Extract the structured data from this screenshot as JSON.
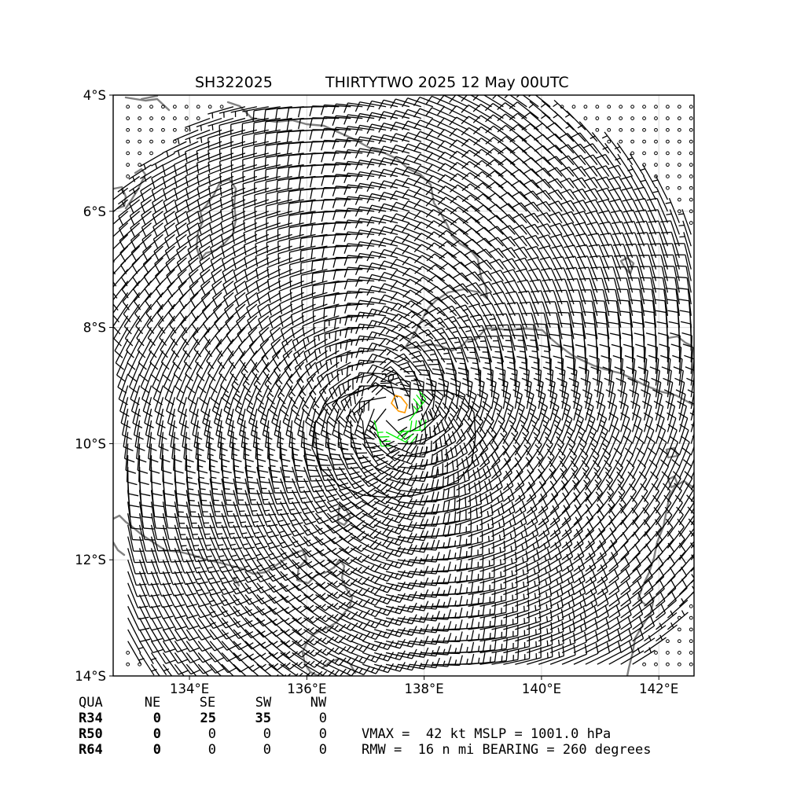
{
  "title": {
    "storm_id": "SH322025",
    "storm_info": "THIRTYTWO 2025 12 May 00UTC"
  },
  "map": {
    "lat_range": [
      -14,
      -4
    ],
    "lon_range": [
      132.7,
      142.6
    ],
    "lat_ticks": [
      {
        "value": -4,
        "label": "4°S"
      },
      {
        "value": -6,
        "label": "6°S"
      },
      {
        "value": -8,
        "label": "8°S"
      },
      {
        "value": -10,
        "label": "10°S"
      },
      {
        "value": -12,
        "label": "12°S"
      },
      {
        "value": -14,
        "label": "14°S"
      }
    ],
    "lon_ticks": [
      {
        "value": 134,
        "label": "134°E"
      },
      {
        "value": 136,
        "label": "136°E"
      },
      {
        "value": 138,
        "label": "138°E"
      },
      {
        "value": 140,
        "label": "140°E"
      },
      {
        "value": 142,
        "label": "142°E"
      }
    ],
    "grid": true,
    "storm_center": {
      "lon": 137.45,
      "lat": -9.45
    },
    "rmw_nmi": 16,
    "vmax_kt": 42,
    "contours": [
      {
        "level": 20,
        "label": "20",
        "color": "#000000"
      },
      {
        "level": 34,
        "label": "",
        "color": "#ff9900"
      }
    ],
    "colors": {
      "coast": "#808080",
      "barb": "#000000",
      "barb_gale": "#00ee00",
      "contour_20": "#000000",
      "contour_34": "#ff9900",
      "grid": "#d9d9d9"
    }
  },
  "wind_radii": {
    "headers": [
      "QUA",
      "NE",
      "SE",
      "SW",
      "NW"
    ],
    "rows": [
      {
        "label": "R34",
        "values": [
          "0",
          "25",
          "35",
          "0"
        ]
      },
      {
        "label": "R50",
        "values": [
          "0",
          "0",
          "0",
          "0"
        ]
      },
      {
        "label": "R64",
        "values": [
          "0",
          "0",
          "0",
          "0"
        ]
      }
    ]
  },
  "stats": {
    "line1": "VMAX =  42 kt MSLP = 1001.0 hPa",
    "line2": "RMW =  16 n mi BEARING = 260 degrees"
  }
}
